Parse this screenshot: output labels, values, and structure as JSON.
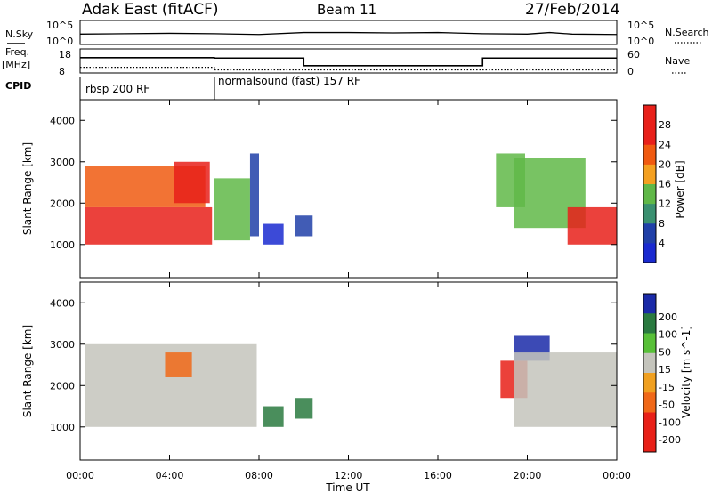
{
  "header": {
    "station": "Adak East (fitACF)",
    "beam": "Beam 11",
    "date": "27/Feb/2014"
  },
  "top_strips": {
    "nsky_label": "N.Sky",
    "nsky_ticks": [
      "10^5",
      "10^0"
    ],
    "nsearch_label": "N.Search",
    "nsearch_ticks": [
      "10^5",
      "10^0"
    ],
    "freq_label": "Freq.",
    "freq_unit": "[MHz]",
    "freq_ticks": [
      "18",
      "8"
    ],
    "nave_label": "Nave",
    "nave_ticks": [
      "60",
      "0"
    ],
    "cpid_label": "CPID",
    "cpid_segments": [
      "rbsp 200 RF",
      "normalsound (fast) 157 RF"
    ]
  },
  "chart_data": [
    {
      "type": "line",
      "title": "",
      "series": [
        {
          "name": "N.Sky",
          "x_hours": [
            0,
            2,
            4,
            6,
            8,
            10,
            12,
            14,
            16,
            18,
            20,
            21,
            22,
            24
          ],
          "log10_values": [
            2.2,
            2.3,
            2.4,
            2.3,
            2.1,
            2.6,
            2.6,
            2.5,
            2.6,
            2.3,
            2.2,
            2.6,
            2.2,
            2.1
          ]
        },
        {
          "name": "Freq. [MHz]",
          "x_hours": [
            0,
            6,
            6,
            10,
            10,
            18,
            18,
            24
          ],
          "values": [
            14.9,
            14.9,
            14.7,
            14.7,
            10.8,
            10.8,
            14.7,
            14.7
          ]
        },
        {
          "name": "Nave",
          "x_hours": [
            0,
            6,
            6,
            24
          ],
          "values": [
            12,
            12,
            4,
            4
          ]
        }
      ],
      "x_range_hours": [
        0,
        24
      ]
    },
    {
      "type": "heatmap",
      "title": "Power",
      "ylabel": "Slant Range [km]",
      "xlabel": "Time UT",
      "x_ticks": [
        "00:00",
        "04:00",
        "08:00",
        "12:00",
        "16:00",
        "20:00",
        "00:00"
      ],
      "y_ticks": [
        1000,
        2000,
        3000,
        4000
      ],
      "ylim": [
        200,
        4500
      ],
      "colorbar": {
        "label": "Power [dB]",
        "ticks": [
          4,
          8,
          12,
          16,
          20,
          24,
          28
        ]
      },
      "regions": [
        {
          "x": [
            0.2,
            5.9
          ],
          "y": [
            1000,
            1900
          ],
          "power": 28
        },
        {
          "x": [
            0.2,
            5.6
          ],
          "y": [
            1900,
            2900
          ],
          "power": 24
        },
        {
          "x": [
            4.2,
            5.8
          ],
          "y": [
            2000,
            3000
          ],
          "power": 26
        },
        {
          "x": [
            6.0,
            7.6
          ],
          "y": [
            1100,
            2600
          ],
          "power": 14
        },
        {
          "x": [
            7.6,
            8.0
          ],
          "y": [
            1200,
            3200
          ],
          "power": 6
        },
        {
          "x": [
            8.2,
            9.1
          ],
          "y": [
            1000,
            1500
          ],
          "power": 5
        },
        {
          "x": [
            9.6,
            10.4
          ],
          "y": [
            1200,
            1700
          ],
          "power": 6
        },
        {
          "x": [
            18.6,
            19.9
          ],
          "y": [
            1900,
            3200
          ],
          "power": 16
        },
        {
          "x": [
            19.4,
            22.6
          ],
          "y": [
            1400,
            3100
          ],
          "power": 14
        },
        {
          "x": [
            21.8,
            24.0
          ],
          "y": [
            1000,
            1900
          ],
          "power": 26
        }
      ]
    },
    {
      "type": "heatmap",
      "title": "Velocity",
      "ylabel": "Slant Range [km]",
      "xlabel": "Time UT",
      "x_ticks": [
        "00:00",
        "04:00",
        "08:00",
        "12:00",
        "16:00",
        "20:00",
        "00:00"
      ],
      "y_ticks": [
        1000,
        2000,
        3000,
        4000
      ],
      "ylim": [
        200,
        4500
      ],
      "colorbar": {
        "label": "Velocity [m s^-1]",
        "ticks": [
          200,
          100,
          50,
          15,
          -15,
          -50,
          -100,
          -200
        ]
      },
      "regions": [
        {
          "x": [
            0.2,
            7.9
          ],
          "y": [
            1000,
            3000
          ],
          "velocity": 0
        },
        {
          "x": [
            3.8,
            5.0
          ],
          "y": [
            2200,
            2800
          ],
          "velocity": -80
        },
        {
          "x": [
            8.2,
            9.1
          ],
          "y": [
            1000,
            1500
          ],
          "velocity": 60
        },
        {
          "x": [
            9.6,
            10.4
          ],
          "y": [
            1200,
            1700
          ],
          "velocity": 60
        },
        {
          "x": [
            18.8,
            20.0
          ],
          "y": [
            1700,
            2600
          ],
          "velocity": -180
        },
        {
          "x": [
            19.4,
            21.0
          ],
          "y": [
            2600,
            3200
          ],
          "velocity": 150
        },
        {
          "x": [
            19.4,
            24.0
          ],
          "y": [
            1000,
            2800
          ],
          "velocity": 0
        }
      ]
    }
  ]
}
